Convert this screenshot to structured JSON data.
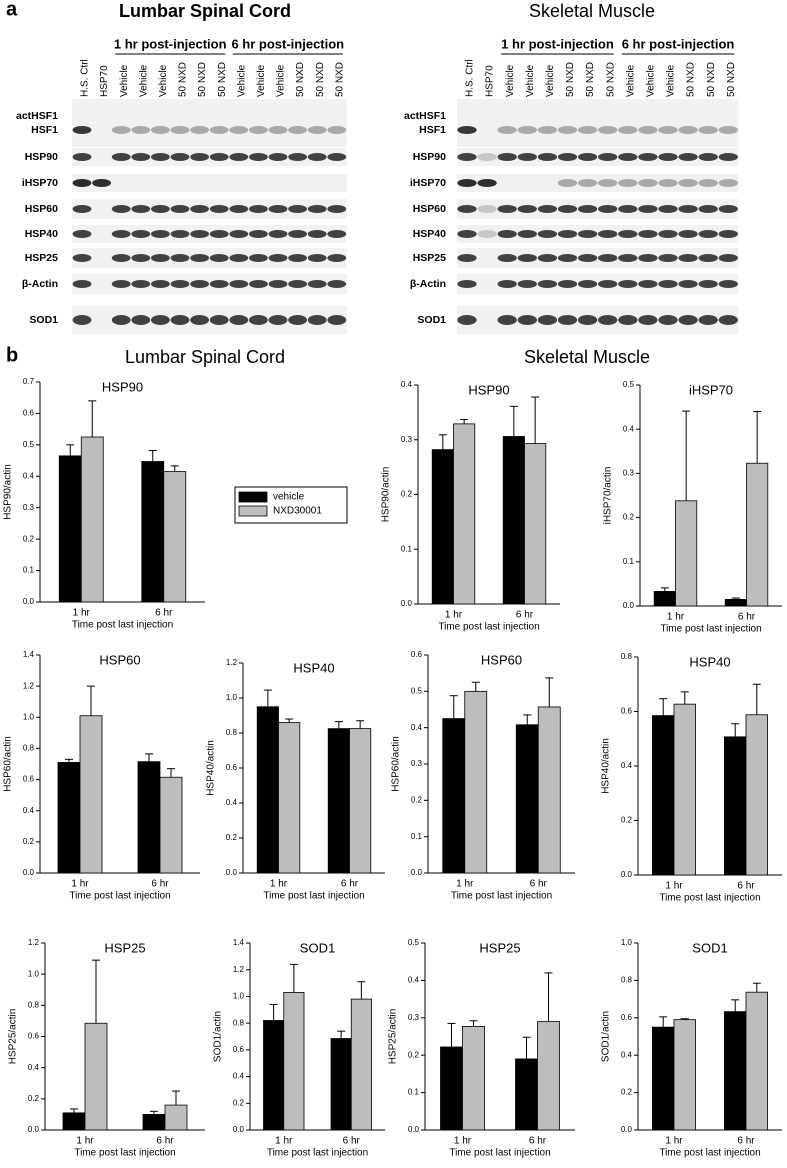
{
  "panel_a": {
    "label": "a",
    "blots": [
      {
        "title": "Lumbar Spinal Cord",
        "groups": [
          "1 hr post-injection",
          "6 hr post-injection"
        ],
        "lanes": [
          "H.S. Ctrl",
          "HSP70",
          "Vehicle",
          "Vehicle",
          "Vehicle",
          "50 NXD",
          "50 NXD",
          "50 NXD",
          "Vehicle",
          "Vehicle",
          "Vehicle",
          "50 NXD",
          "50 NXD",
          "50 NXD"
        ],
        "rows": [
          [
            "actHSF1",
            "HSF1"
          ],
          [
            "HSP90"
          ],
          [
            "iHSP70"
          ],
          [
            "HSP60"
          ],
          [
            "HSP40"
          ],
          [
            "HSP25"
          ],
          [
            "β-Actin"
          ],
          [
            "SOD1"
          ]
        ]
      },
      {
        "title": "Skeletal Muscle",
        "groups": [
          "1 hr post-injection",
          "6 hr post-injection"
        ],
        "lanes": [
          "H.S. Ctrl",
          "HSP70",
          "Vehicle",
          "Vehicle",
          "Vehicle",
          "50 NXD",
          "50 NXD",
          "50 NXD",
          "Vehicle",
          "Vehicle",
          "Vehicle",
          "50 NXD",
          "50 NXD",
          "50 NXD"
        ],
        "rows": [
          [
            "actHSF1",
            "HSF1"
          ],
          [
            "HSP90"
          ],
          [
            "iHSP70"
          ],
          [
            "HSP60"
          ],
          [
            "HSP40"
          ],
          [
            "HSP25"
          ],
          [
            "β-Actin"
          ],
          [
            "SOD1"
          ]
        ]
      }
    ]
  },
  "panel_b": {
    "label": "b",
    "sections": [
      "Lumbar Spinal Cord",
      "Skeletal Muscle"
    ]
  },
  "chart_data": [
    {
      "type": "bar",
      "title": "HSP90",
      "y_label": "HSP90/actin",
      "x_label": "Time post last injection",
      "categories": [
        "1 hr",
        "6 hr"
      ],
      "ylim": [
        0,
        0.7
      ],
      "yticks": [
        {
          "value": 0,
          "label": "0.0"
        },
        0.1,
        0.2,
        0.3,
        0.4,
        0.5,
        0.6,
        0.7
      ],
      "legend": "right",
      "series": [
        {
          "name": "vehicle",
          "color": "#000000",
          "values": [
            0.465,
            0.447
          ],
          "errors": [
            0.035,
            0.035
          ]
        },
        {
          "name": "NXD30001",
          "color": "#bdbdbd",
          "values": [
            0.525,
            0.415
          ],
          "errors": [
            0.115,
            0.018
          ]
        }
      ]
    },
    {
      "type": "bar",
      "title": "HSP90",
      "y_label": "HSP90/actin",
      "x_label": "Time post last injection",
      "categories": [
        "1 hr",
        "6 hr"
      ],
      "ylim": [
        0,
        0.4
      ],
      "yticks": [
        {
          "value": 0,
          "label": "0.0"
        },
        0.1,
        0.2,
        0.3,
        0.4
      ],
      "series": [
        {
          "color": "#000000",
          "values": [
            0.282,
            0.306
          ],
          "errors": [
            0.027,
            0.055
          ]
        },
        {
          "color": "#bdbdbd",
          "values": [
            0.329,
            0.293
          ],
          "errors": [
            0.008,
            0.085
          ]
        }
      ]
    },
    {
      "type": "bar",
      "title": "iHSP70",
      "y_label": "iHSP70/actin",
      "x_label": "Time post last injection",
      "categories": [
        "1 hr",
        "6 hr"
      ],
      "ylim": [
        0,
        0.5
      ],
      "yticks": [
        {
          "value": 0,
          "label": "0.0"
        },
        0.1,
        0.2,
        0.3,
        0.4,
        0.5
      ],
      "series": [
        {
          "color": "#000000",
          "values": [
            0.033,
            0.015
          ],
          "errors": [
            0.008,
            0.003
          ]
        },
        {
          "color": "#bdbdbd",
          "values": [
            0.238,
            0.323
          ],
          "errors": [
            0.203,
            0.117
          ]
        }
      ]
    },
    {
      "type": "bar",
      "title": "HSP60",
      "y_label": "HSP60/actin",
      "x_label": "Time post last injection",
      "categories": [
        "1 hr",
        "6 hr"
      ],
      "ylim": [
        0,
        1.4
      ],
      "yticks": [
        {
          "value": 0,
          "label": "0.0"
        },
        0.2,
        0.4,
        0.6,
        0.8,
        {
          "value": 1,
          "label": "1.0"
        },
        1.2,
        1.4
      ],
      "series": [
        {
          "color": "#000000",
          "values": [
            0.71,
            0.715
          ],
          "errors": [
            0.02,
            0.05
          ]
        },
        {
          "color": "#bdbdbd",
          "values": [
            1.01,
            0.615
          ],
          "errors": [
            0.19,
            0.055
          ]
        }
      ]
    },
    {
      "type": "bar",
      "title": "HSP40",
      "y_label": "HSP40/actin",
      "x_label": "Time post last injection",
      "categories": [
        "1 hr",
        "6 hr"
      ],
      "ylim": [
        0,
        1.2
      ],
      "yticks": [
        {
          "value": 0,
          "label": "0.0"
        },
        0.2,
        0.4,
        0.6,
        0.8,
        {
          "value": 1,
          "label": "1.0"
        },
        1.2
      ],
      "series": [
        {
          "color": "#000000",
          "values": [
            0.95,
            0.825
          ],
          "errors": [
            0.095,
            0.04
          ]
        },
        {
          "color": "#bdbdbd",
          "values": [
            0.86,
            0.825
          ],
          "errors": [
            0.02,
            0.045
          ]
        }
      ]
    },
    {
      "type": "bar",
      "title": "HSP60",
      "y_label": "HSP60/actin",
      "x_label": "Time post last injection",
      "categories": [
        "1 hr",
        "6 hr"
      ],
      "ylim": [
        0,
        0.6
      ],
      "yticks": [
        {
          "value": 0,
          "label": "0.0"
        },
        0.1,
        0.2,
        0.3,
        0.4,
        0.5,
        0.6
      ],
      "series": [
        {
          "color": "#000000",
          "values": [
            0.425,
            0.408
          ],
          "errors": [
            0.063,
            0.027
          ]
        },
        {
          "color": "#bdbdbd",
          "values": [
            0.5,
            0.457
          ],
          "errors": [
            0.025,
            0.08
          ]
        }
      ]
    },
    {
      "type": "bar",
      "title": "HSP40",
      "y_label": "HSP40/actin",
      "x_label": "Time post last injection",
      "categories": [
        "1 hr",
        "6 hr"
      ],
      "ylim": [
        0,
        0.8
      ],
      "yticks": [
        {
          "value": 0,
          "label": "0.0"
        },
        0.2,
        0.4,
        0.6,
        0.8
      ],
      "series": [
        {
          "color": "#000000",
          "values": [
            0.585,
            0.507
          ],
          "errors": [
            0.062,
            0.048
          ]
        },
        {
          "color": "#bdbdbd",
          "values": [
            0.627,
            0.588
          ],
          "errors": [
            0.045,
            0.112
          ]
        }
      ]
    },
    {
      "type": "bar",
      "title": "HSP25",
      "y_label": "HSP25/actin",
      "x_label": "Time post last injection",
      "categories": [
        "1 hr",
        "6 hr"
      ],
      "ylim": [
        0,
        1.2
      ],
      "yticks": [
        {
          "value": 0,
          "label": "0.0"
        },
        0.2,
        0.4,
        0.6,
        0.8,
        {
          "value": 1,
          "label": "1.0"
        },
        1.2
      ],
      "series": [
        {
          "color": "#000000",
          "values": [
            0.11,
            0.1
          ],
          "errors": [
            0.025,
            0.02
          ]
        },
        {
          "color": "#bdbdbd",
          "values": [
            0.685,
            0.16
          ],
          "errors": [
            0.405,
            0.09
          ]
        }
      ]
    },
    {
      "type": "bar",
      "title": "SOD1",
      "y_label": "SOD1/actin",
      "x_label": "Time post last injection",
      "categories": [
        "1 hr",
        "6 hr"
      ],
      "ylim": [
        0,
        1.4
      ],
      "yticks": [
        {
          "value": 0,
          "label": "0.0"
        },
        0.2,
        0.4,
        0.6,
        0.8,
        {
          "value": 1,
          "label": "1.0"
        },
        1.2,
        1.4
      ],
      "series": [
        {
          "color": "#000000",
          "values": [
            0.82,
            0.685
          ],
          "errors": [
            0.12,
            0.055
          ]
        },
        {
          "color": "#bdbdbd",
          "values": [
            1.03,
            0.98
          ],
          "errors": [
            0.21,
            0.13
          ]
        }
      ]
    },
    {
      "type": "bar",
      "title": "HSP25",
      "y_label": "HSP25/actin",
      "x_label": "Time post last injection",
      "categories": [
        "1 hr",
        "6 hr"
      ],
      "ylim": [
        0,
        0.5
      ],
      "yticks": [
        {
          "value": 0,
          "label": "0.0"
        },
        0.1,
        0.2,
        0.3,
        0.4,
        0.5
      ],
      "series": [
        {
          "color": "#000000",
          "values": [
            0.222,
            0.19
          ],
          "errors": [
            0.063,
            0.058
          ]
        },
        {
          "color": "#bdbdbd",
          "values": [
            0.277,
            0.29
          ],
          "errors": [
            0.015,
            0.13
          ]
        }
      ]
    },
    {
      "type": "bar",
      "title": "SOD1",
      "y_label": "SOD1/actin",
      "x_label": "Time post last injection",
      "categories": [
        "1 hr",
        "6 hr"
      ],
      "ylim": [
        0,
        1.0
      ],
      "yticks": [
        {
          "value": 0,
          "label": "0.0"
        },
        0.2,
        0.4,
        0.6,
        0.8,
        {
          "value": 1,
          "label": "1.0"
        }
      ],
      "series": [
        {
          "color": "#000000",
          "values": [
            0.55,
            0.633
          ],
          "errors": [
            0.055,
            0.063
          ]
        },
        {
          "color": "#bdbdbd",
          "values": [
            0.59,
            0.737
          ],
          "errors": [
            0.005,
            0.048
          ]
        }
      ]
    }
  ]
}
